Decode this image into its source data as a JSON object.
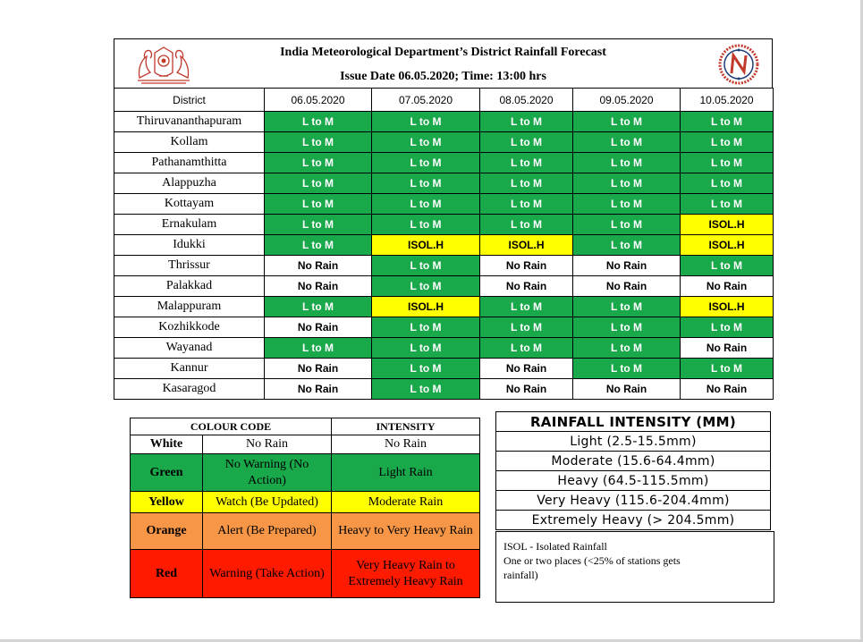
{
  "header": {
    "title": "India Meteorological Department’s District Rainfall Forecast",
    "issue_line": "Issue Date 06.05.2020; Time: 13:00 hrs",
    "left_emblem": "kerala-state-emblem",
    "right_emblem": "kerala-disaster-management-logo"
  },
  "forecast": {
    "column_headers": [
      "District",
      "06.05.2020",
      "07.05.2020",
      "08.05.2020",
      "09.05.2020",
      "10.05.2020"
    ],
    "rows": [
      {
        "district": "Thiruvananthapuram",
        "values": [
          "L to M",
          "L to M",
          "L to M",
          "L to M",
          "L to M"
        ],
        "colors": [
          "green",
          "green",
          "green",
          "green",
          "green"
        ]
      },
      {
        "district": "Kollam",
        "values": [
          "L to M",
          "L to M",
          "L to M",
          "L to M",
          "L to M"
        ],
        "colors": [
          "green",
          "green",
          "green",
          "green",
          "green"
        ]
      },
      {
        "district": "Pathanamthitta",
        "values": [
          "L to M",
          "L to M",
          "L to M",
          "L to M",
          "L to M"
        ],
        "colors": [
          "green",
          "green",
          "green",
          "green",
          "green"
        ]
      },
      {
        "district": "Alappuzha",
        "values": [
          "L to M",
          "L to M",
          "L to M",
          "L to M",
          "L to M"
        ],
        "colors": [
          "green",
          "green",
          "green",
          "green",
          "green"
        ]
      },
      {
        "district": "Kottayam",
        "values": [
          "L to M",
          "L to M",
          "L to M",
          "L to M",
          "L to M"
        ],
        "colors": [
          "green",
          "green",
          "green",
          "green",
          "green"
        ]
      },
      {
        "district": "Ernakulam",
        "values": [
          "L to M",
          "L to M",
          "L to M",
          "L to M",
          "ISOL.H"
        ],
        "colors": [
          "green",
          "green",
          "green",
          "green",
          "yellow"
        ]
      },
      {
        "district": "Idukki",
        "values": [
          "L to M",
          "ISOL.H",
          "ISOL.H",
          "L to M",
          "ISOL.H"
        ],
        "colors": [
          "green",
          "yellow",
          "yellow",
          "green",
          "yellow"
        ]
      },
      {
        "district": "Thrissur",
        "values": [
          "No Rain",
          "L to M",
          "No Rain",
          "No Rain",
          "L to M"
        ],
        "colors": [
          "white",
          "green",
          "white",
          "white",
          "green"
        ]
      },
      {
        "district": "Palakkad",
        "values": [
          "No Rain",
          "L to M",
          "No Rain",
          "No Rain",
          "No Rain"
        ],
        "colors": [
          "white",
          "green",
          "white",
          "white",
          "white"
        ]
      },
      {
        "district": "Malappuram",
        "values": [
          "L to M",
          "ISOL.H",
          "L to M",
          "L to M",
          "ISOL.H"
        ],
        "colors": [
          "green",
          "yellow",
          "green",
          "green",
          "yellow"
        ]
      },
      {
        "district": "Kozhikkode",
        "values": [
          "No Rain",
          "L to M",
          "L to M",
          "L to M",
          "L to M"
        ],
        "colors": [
          "white",
          "green",
          "green",
          "green",
          "green"
        ]
      },
      {
        "district": "Wayanad",
        "values": [
          "L to M",
          "L to M",
          "L to M",
          "L to M",
          "No Rain"
        ],
        "colors": [
          "green",
          "green",
          "green",
          "green",
          "white"
        ]
      },
      {
        "district": "Kannur",
        "values": [
          "No Rain",
          "L to M",
          "No Rain",
          "L to M",
          "L to M"
        ],
        "colors": [
          "white",
          "green",
          "white",
          "green",
          "green"
        ]
      },
      {
        "district": "Kasaragod",
        "values": [
          "No Rain",
          "L to M",
          "No Rain",
          "No Rain",
          "No Rain"
        ],
        "colors": [
          "white",
          "green",
          "white",
          "white",
          "white"
        ]
      }
    ]
  },
  "colour_code": {
    "headers": [
      "COLOUR  CODE",
      "INTENSITY"
    ],
    "rows": [
      {
        "label": "White",
        "meaning": "No Rain",
        "intensity": "No Rain",
        "color": "white"
      },
      {
        "label": "Green",
        "meaning": "No Warning  (No Action)",
        "intensity": "Light  Rain",
        "color": "green"
      },
      {
        "label": "Yellow",
        "meaning": "Watch (Be Updated)",
        "intensity": "Moderate Rain",
        "color": "yellow"
      },
      {
        "label": "Orange",
        "meaning": "Alert (Be Prepared)",
        "intensity": "Heavy to Very Heavy Rain",
        "color": "orange"
      },
      {
        "label": "Red",
        "meaning": "Warning  (Take Action)",
        "intensity": "Very Heavy Rain to Extremely  Heavy Rain",
        "color": "red"
      }
    ]
  },
  "intensity_scale": {
    "title": "RAINFALL INTENSITY (MM)",
    "rows": [
      "Light (2.5-15.5mm)",
      "Moderate (15.6-64.4mm)",
      "Heavy (64.5-115.5mm)",
      "Very Heavy (115.6-204.4mm)",
      "Extremely Heavy (> 204.5mm)"
    ]
  },
  "notes": {
    "line1": "ISOL  - Isolated Rainfall",
    "line2": "One or two places (<25%  of stations gets",
    "line3": "rainfall)"
  },
  "colors": {
    "green": "#19a84a",
    "yellow": "#ffff00",
    "white": "#ffffff",
    "orange": "#f79646",
    "red": "#ff1a00"
  }
}
